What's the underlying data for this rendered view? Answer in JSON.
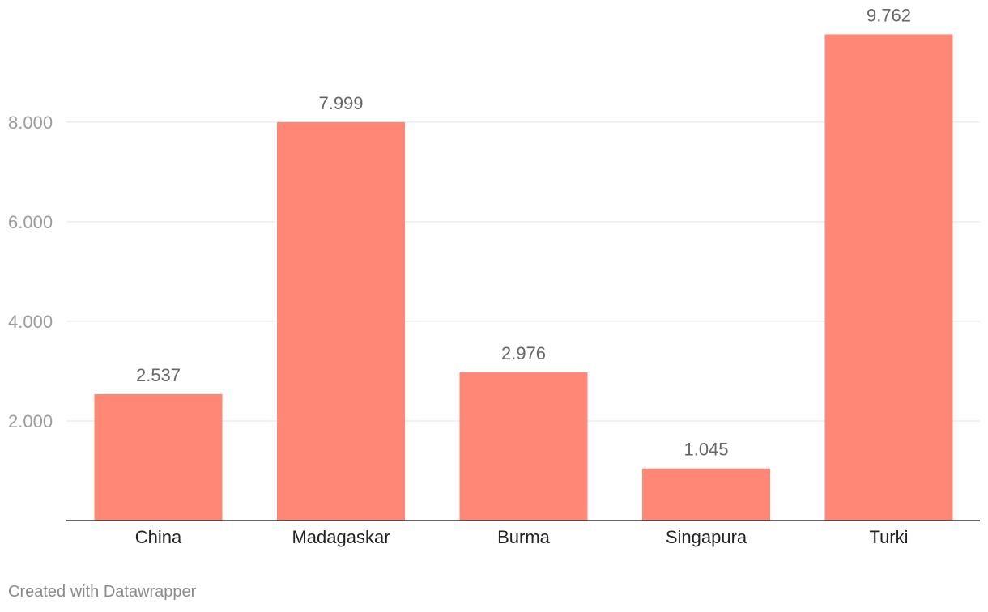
{
  "chart_data": {
    "type": "bar",
    "categories": [
      "China",
      "Madagaskar",
      "Burma",
      "Singapura",
      "Turki"
    ],
    "values": [
      2537,
      7999,
      2976,
      1045,
      9762
    ],
    "value_labels": [
      "2.537",
      "7.999",
      "2.976",
      "1.045",
      "9.762"
    ],
    "yticks": [
      2000,
      4000,
      6000,
      8000
    ],
    "ytick_labels": [
      "2.000",
      "4.000",
      "6.000",
      "8.000"
    ],
    "ylim": [
      0,
      10000
    ],
    "grid": true,
    "bar_color": "#ff8775"
  },
  "footer": {
    "credit": "Created with Datawrapper"
  }
}
